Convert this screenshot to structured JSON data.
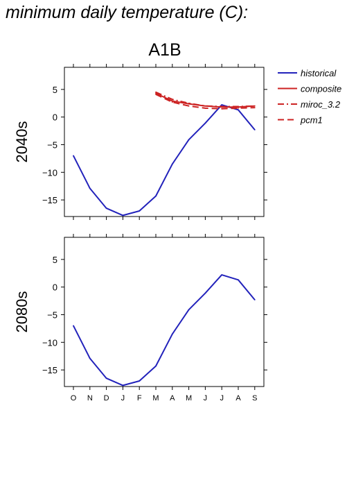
{
  "page_title": "minimum daily temperature (C):",
  "scenario_title": "A1B",
  "colors": {
    "historical": "#2222bb",
    "projection": "#cc2222"
  },
  "legend": [
    {
      "label": "historical",
      "style": "solid",
      "color_key": "historical"
    },
    {
      "label": "composite",
      "style": "solid",
      "color_key": "projection"
    },
    {
      "label": "miroc_3.2",
      "style": "dashdot",
      "color_key": "projection"
    },
    {
      "label": "pcm1",
      "style": "dashed",
      "color_key": "projection"
    }
  ],
  "chart_data": [
    {
      "type": "line",
      "panel_label": "2040s",
      "categories": [
        "O",
        "N",
        "D",
        "J",
        "F",
        "M",
        "A",
        "M",
        "J",
        "J",
        "A",
        "S"
      ],
      "ylim": [
        -18,
        9
      ],
      "yticks": [
        -15,
        -10,
        -5,
        0,
        5
      ],
      "series": [
        {
          "name": "historical",
          "style": "solid",
          "values": [
            -7.0,
            -12.9,
            -16.5,
            -17.8,
            -17.0,
            -14.3,
            -8.5,
            -4.1,
            -1.1,
            2.2,
            1.3,
            -2.3
          ]
        },
        {
          "name": "composite",
          "style": "solid",
          "values": [
            null,
            null,
            null,
            null,
            null,
            4.3,
            2.9,
            2.4,
            2.0,
            1.8,
            1.8,
            2.0
          ]
        },
        {
          "name": "miroc_3.2",
          "style": "dashdot",
          "values": [
            null,
            null,
            null,
            null,
            null,
            4.5,
            3.2,
            2.5,
            2.0,
            1.9,
            1.9,
            2.0
          ]
        },
        {
          "name": "pcm1",
          "style": "dashed",
          "values": [
            null,
            null,
            null,
            null,
            null,
            4.1,
            2.7,
            2.0,
            1.6,
            1.5,
            1.6,
            1.7
          ]
        }
      ]
    },
    {
      "type": "line",
      "panel_label": "2080s",
      "categories": [
        "O",
        "N",
        "D",
        "J",
        "F",
        "M",
        "A",
        "M",
        "J",
        "J",
        "A",
        "S"
      ],
      "ylim": [
        -18,
        9
      ],
      "yticks": [
        -15,
        -10,
        -5,
        0,
        5
      ],
      "series": [
        {
          "name": "historical",
          "style": "solid",
          "values": [
            -7.0,
            -12.9,
            -16.5,
            -17.8,
            -17.0,
            -14.3,
            -8.5,
            -4.1,
            -1.1,
            2.2,
            1.3,
            -2.3
          ]
        }
      ]
    }
  ]
}
